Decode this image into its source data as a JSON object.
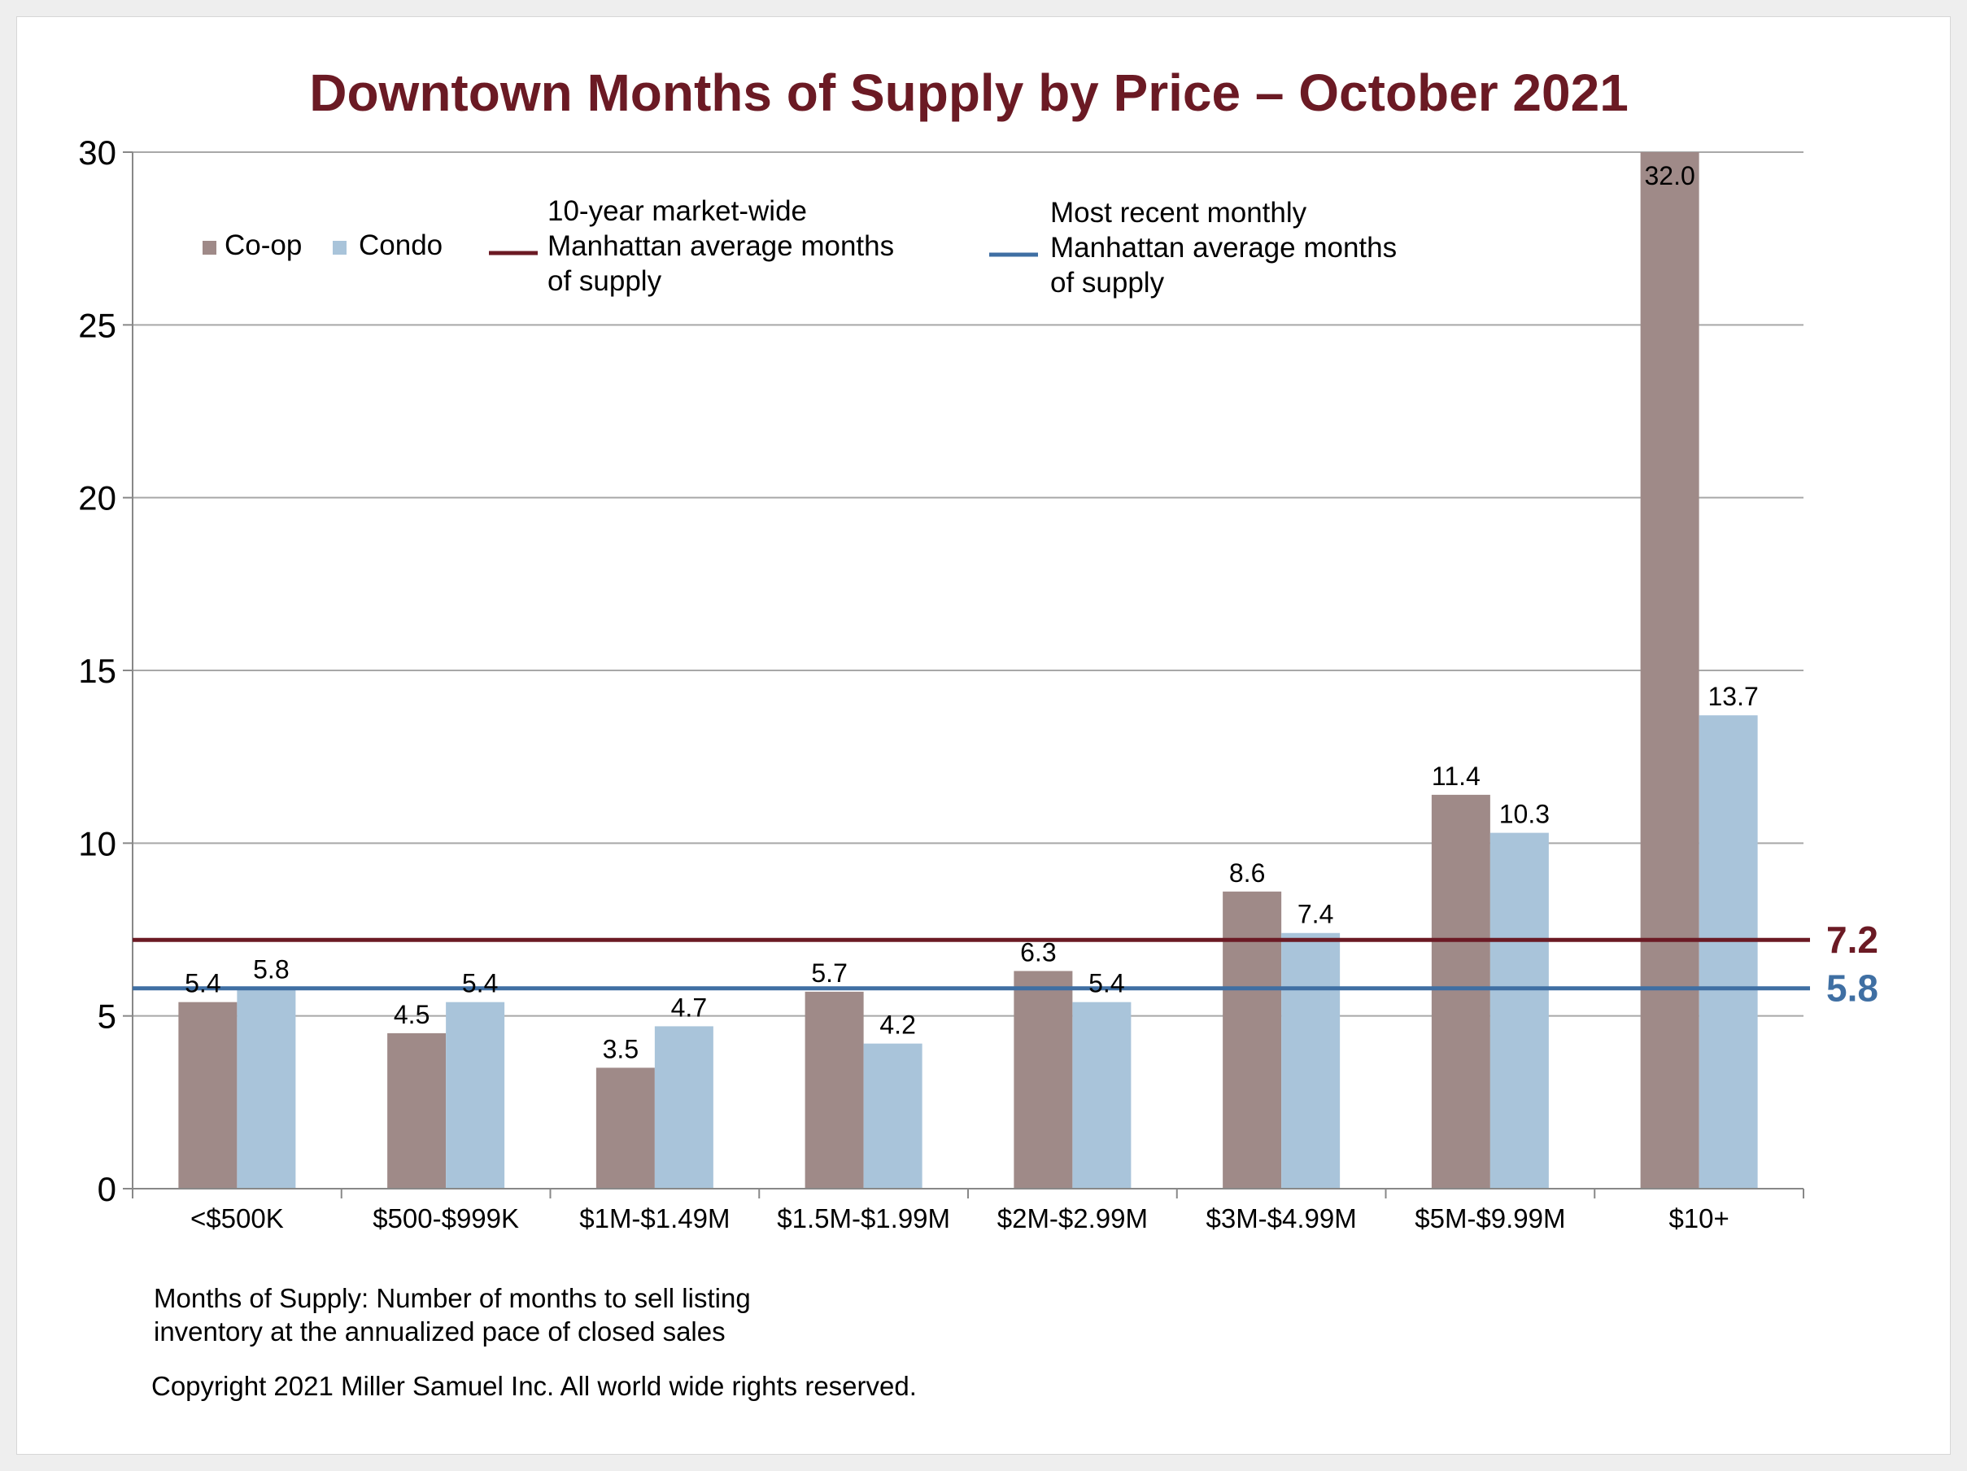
{
  "colors": {
    "title": "#6b1a24",
    "coop": "#9f8a88",
    "condo": "#a9c4da",
    "avg_10yr": "#6b1a24",
    "avg_recent": "#3f6fa3",
    "grid": "#a8a8a8",
    "frame_bg": "#eeeeee"
  },
  "footnote": {
    "line1": "Months of Supply: Number of months to sell listing",
    "line2": "inventory at the annualized pace of closed sales",
    "copyright": "Copyright 2021 Miller Samuel Inc.  All world wide rights reserved."
  },
  "chart_data": {
    "type": "bar",
    "title": "Downtown Months of Supply by Price – October 2021",
    "xlabel": "",
    "ylabel": "",
    "ylim": [
      0,
      30
    ],
    "yticks": [
      0,
      5,
      10,
      15,
      20,
      25,
      30
    ],
    "grid": true,
    "legend_position": "top-left",
    "categories": [
      "<$500K",
      "$500-$999K",
      "$1M-$1.49M",
      "$1.5M-$1.99M",
      "$2M-$2.99M",
      "$3M-$4.99M",
      "$5M-$9.99M",
      "$10+"
    ],
    "series": [
      {
        "name": "Co-op",
        "values": [
          5.4,
          4.5,
          3.5,
          5.7,
          6.3,
          8.6,
          11.4,
          32.0
        ],
        "labels": [
          "5.4",
          "4.5",
          "3.5",
          "5.7",
          "6.3",
          "8.6",
          "11.4",
          "32.0"
        ]
      },
      {
        "name": "Condo",
        "values": [
          5.8,
          5.4,
          4.7,
          4.2,
          5.4,
          7.4,
          10.3,
          13.7
        ],
        "labels": [
          "5.8",
          "5.4",
          "4.7",
          "4.2",
          "5.4",
          "7.4",
          "10.3",
          "13.7"
        ]
      }
    ],
    "reference_lines": [
      {
        "legend_lines": [
          "10-year market-wide",
          "Manhattan average months",
          "of supply"
        ],
        "value": 7.2,
        "label": "7.2"
      },
      {
        "legend_lines": [
          "Most recent monthly",
          "Manhattan average months",
          "of supply"
        ],
        "value": 5.8,
        "label": "5.8"
      }
    ]
  }
}
